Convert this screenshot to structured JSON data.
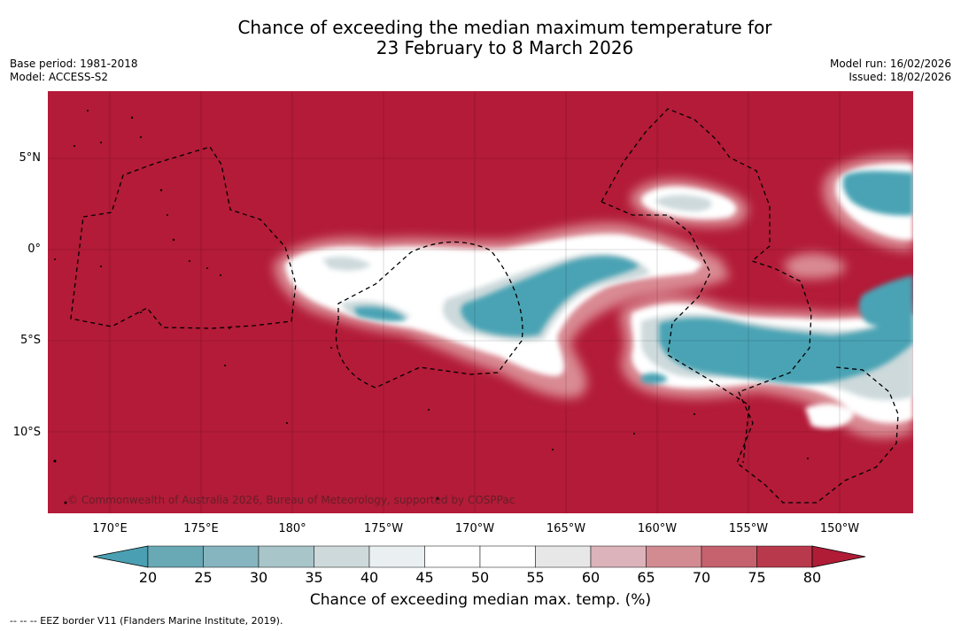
{
  "title": {
    "line1": "Chance of exceeding the median maximum temperature for",
    "line2": "23 February to 8 March 2026"
  },
  "meta": {
    "base_period": "Base period: 1981-2018",
    "model": "Model: ACCESS-S2",
    "model_run": "Model run: 16/02/2026",
    "issued": "Issued: 18/02/2026"
  },
  "axes": {
    "lat_labels": [
      "5°N",
      "0°",
      "5°S",
      "10°S"
    ],
    "lon_labels": [
      "170°E",
      "175°E",
      "180°",
      "175°W",
      "170°W",
      "165°W",
      "160°W",
      "155°W",
      "150°W"
    ]
  },
  "credit": "© Commonwealth of Australia 2026, Bureau of Meteorology, supported by COSPPac",
  "colorbar": {
    "ticks": [
      "20",
      "25",
      "30",
      "35",
      "40",
      "45",
      "50",
      "55",
      "60",
      "65",
      "70",
      "75",
      "80"
    ],
    "colors": [
      "#4aa0b2",
      "#69a8b5",
      "#86b5c0",
      "#a8c5ca",
      "#cdd9db",
      "#eaf0f2",
      "#ffffff",
      "#ffffff",
      "#e8e7e8",
      "#dcb3ba",
      "#d38b92",
      "#c6616e",
      "#b8394b",
      "#b01c36"
    ],
    "label": "Chance of exceeding median max. temp. (%)"
  },
  "legend_footer": "--  --  -- EEZ border V11 (Flanders Marine Institute, 2019).",
  "colors": {
    "high": "#b31b38",
    "low": "#48a3b4",
    "border": "#000000"
  }
}
